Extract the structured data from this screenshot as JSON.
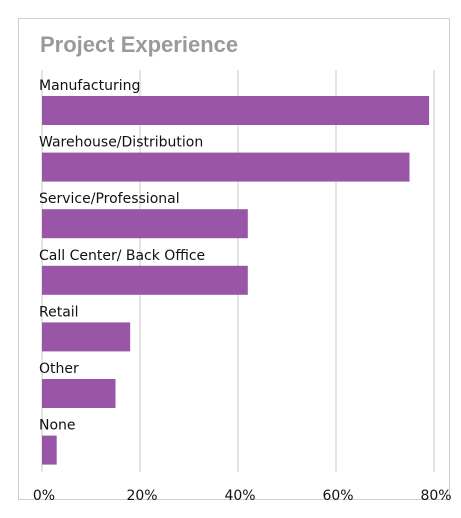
{
  "chart_data": {
    "type": "hbar",
    "title": "Project Experience",
    "categories": [
      "Manufacturing",
      "Warehouse/Distribution",
      "Service/Professional",
      "Call Center/ Back Office",
      "Retail",
      "Other",
      "None"
    ],
    "values": [
      79,
      75,
      42,
      42,
      18,
      15,
      3
    ],
    "color": "#9a56a6",
    "xlim": [
      0,
      80
    ],
    "xticks": [
      {
        "value": 0,
        "label": "0%"
      },
      {
        "value": 20,
        "label": "20%"
      },
      {
        "value": 40,
        "label": "40%"
      },
      {
        "value": 60,
        "label": "60%"
      },
      {
        "value": 80,
        "label": "80%"
      }
    ],
    "grid": true
  }
}
